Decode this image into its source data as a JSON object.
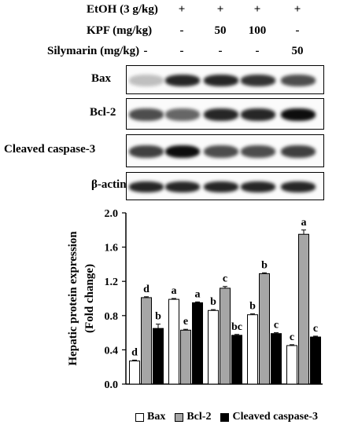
{
  "treatments": [
    {
      "label": "EtOH (3 g/kg)",
      "values": [
        "-",
        "+",
        "+",
        "+",
        "+"
      ]
    },
    {
      "label": "KPF (mg/kg)",
      "values": [
        "-",
        "-",
        "50",
        "100",
        "-"
      ]
    },
    {
      "label": "Silymarin (mg/kg)",
      "values": [
        "-",
        "-",
        "-",
        "-",
        "50"
      ]
    }
  ],
  "blots": [
    {
      "label": "Bax",
      "intensities": [
        0.25,
        0.85,
        0.85,
        0.8,
        0.7
      ]
    },
    {
      "label": "Bcl-2",
      "intensities": [
        0.7,
        0.6,
        0.85,
        0.85,
        0.95
      ]
    },
    {
      "label": "Cleaved caspase-3",
      "intensities": [
        0.75,
        0.95,
        0.7,
        0.7,
        0.75
      ]
    },
    {
      "label": "β-actin",
      "intensities": [
        0.85,
        0.85,
        0.85,
        0.85,
        0.85
      ]
    }
  ],
  "chart_data": {
    "type": "bar",
    "ylabel": "Hepatic protein expression\n(Fold change)",
    "ylabel_lines": [
      "Hepatic protein expression",
      "(Fold change)"
    ],
    "ylim": [
      0.0,
      2.0
    ],
    "yticks": [
      "0.0",
      "0.4",
      "0.8",
      "1.2",
      "1.6",
      "2.0"
    ],
    "ytick_values": [
      0.0,
      0.4,
      0.8,
      1.2,
      1.6,
      2.0
    ],
    "groups": 5,
    "series": [
      {
        "name": "Bax",
        "color": "#ffffff",
        "values": [
          0.27,
          0.99,
          0.86,
          0.81,
          0.45
        ],
        "errors": [
          0.01,
          0.01,
          0.01,
          0.01,
          0.01
        ],
        "labels": [
          "d",
          "a",
          "b",
          "b",
          "c"
        ]
      },
      {
        "name": "Bcl-2",
        "color": "#a6a6a6",
        "values": [
          1.01,
          0.63,
          1.12,
          1.29,
          1.75
        ],
        "errors": [
          0.01,
          0.01,
          0.02,
          0.01,
          0.05
        ],
        "labels": [
          "d",
          "e",
          "c",
          "b",
          "a"
        ]
      },
      {
        "name": "Cleaved caspase-3",
        "color": "#000000",
        "values": [
          0.65,
          0.95,
          0.57,
          0.59,
          0.55
        ],
        "errors": [
          0.05,
          0.01,
          0.01,
          0.01,
          0.01
        ],
        "labels": [
          "b",
          "a",
          "bc",
          "c",
          "c"
        ]
      }
    ]
  }
}
